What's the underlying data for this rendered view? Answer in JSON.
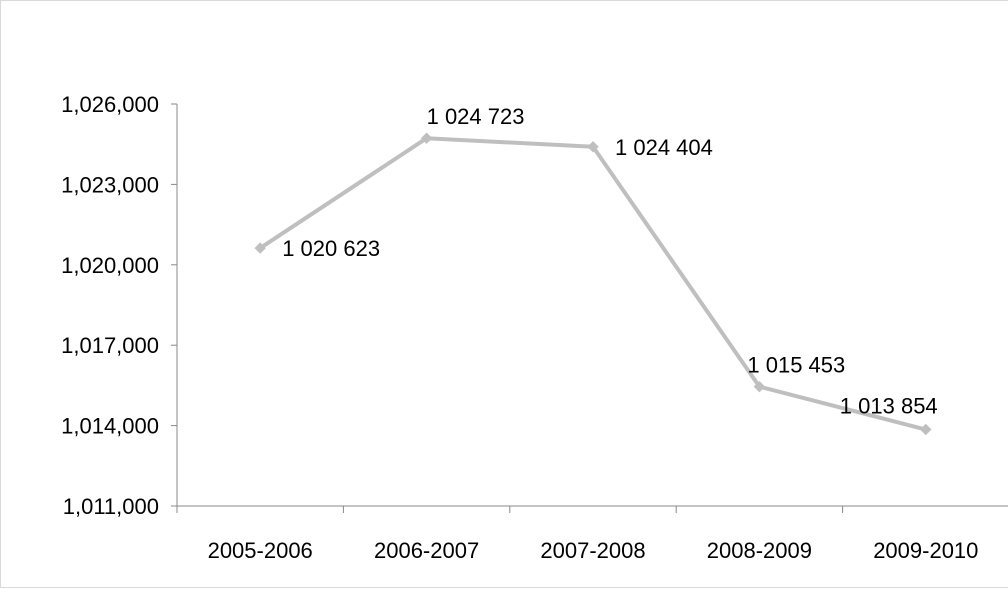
{
  "chart_data": {
    "type": "line",
    "title": "",
    "xlabel": "",
    "ylabel": "",
    "categories": [
      "2005-2006",
      "2006-2007",
      "2007-2008",
      "2008-2009",
      "2009-2010"
    ],
    "series": [
      {
        "values": [
          1020623,
          1024723,
          1024404,
          1015453,
          1013854
        ],
        "data_labels": [
          "1 020 623",
          "1 024 723",
          "1 024 404",
          "1 015 453",
          "1 013 854"
        ],
        "color": "#bfbfbf",
        "marker": "diamond"
      }
    ],
    "y_ticks": [
      1011000,
      1014000,
      1017000,
      1020000,
      1023000,
      1026000
    ],
    "y_tick_labels": [
      "1,011,000",
      "1,014,000",
      "1,017,000",
      "1,020,000",
      "1,023,000",
      "1,026,000"
    ],
    "ylim": [
      1011000,
      1026000
    ],
    "grid": false,
    "legend": "none",
    "colors": {
      "line": "#bfbfbf",
      "axis": "#888888",
      "border": "#d9d9d9"
    }
  }
}
